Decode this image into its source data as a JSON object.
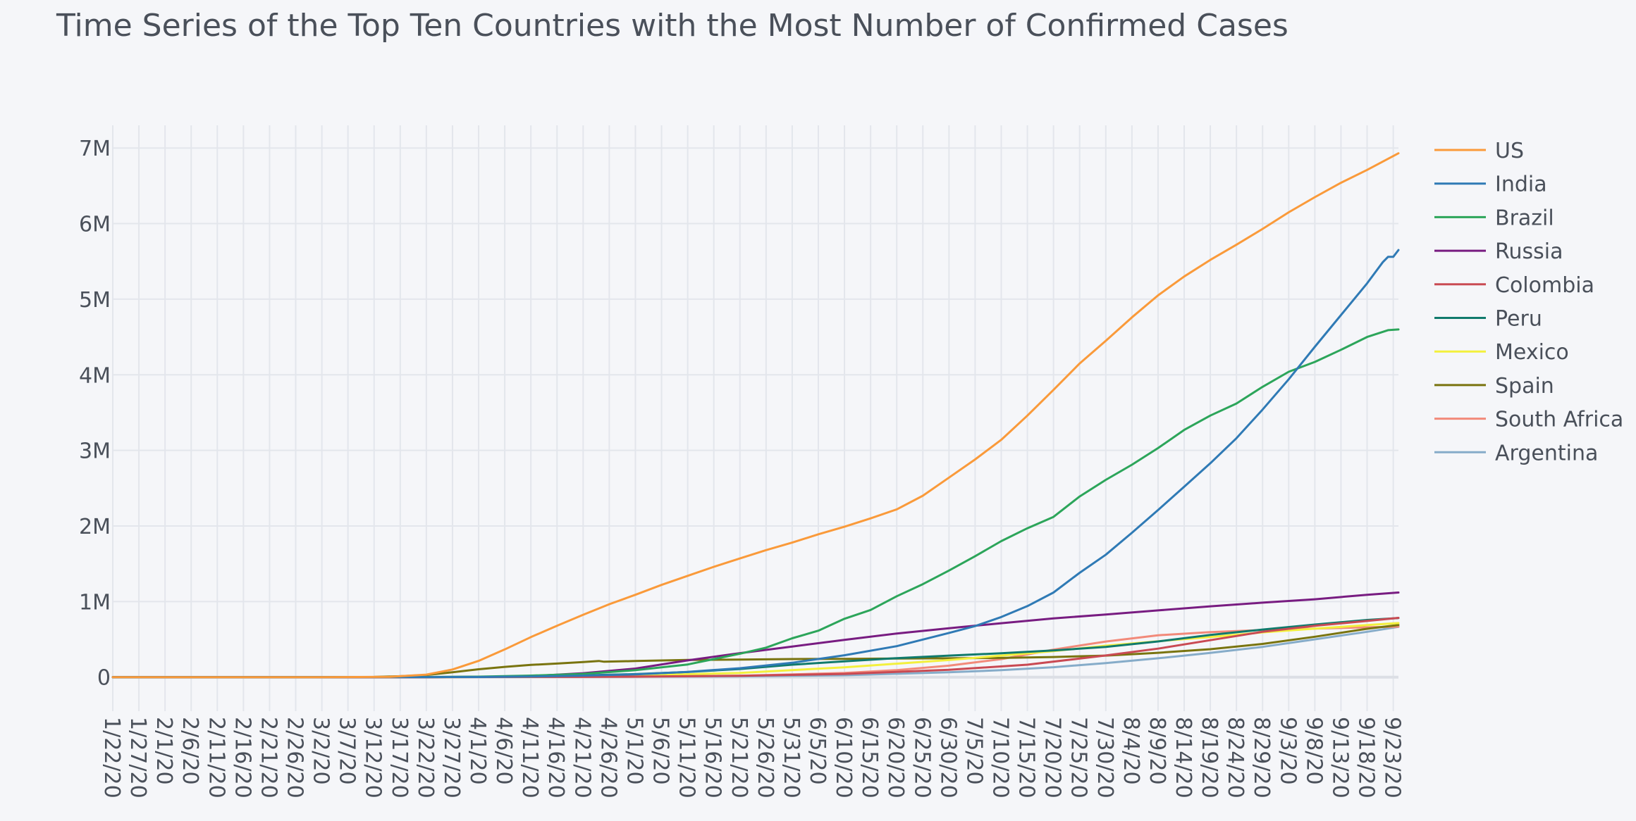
{
  "chart_data": {
    "type": "line",
    "title": "Time Series of the Top Ten Countries with the Most Number of Confirmed Cases",
    "xlabel": "",
    "ylabel": "",
    "x_start": "2020-01-22",
    "x_end": "2020-09-24",
    "x_tick_labels": [
      "1/22/20",
      "1/27/20",
      "2/1/20",
      "2/6/20",
      "2/11/20",
      "2/16/20",
      "2/21/20",
      "2/26/20",
      "3/2/20",
      "3/7/20",
      "3/12/20",
      "3/17/20",
      "3/22/20",
      "3/27/20",
      "4/1/20",
      "4/6/20",
      "4/11/20",
      "4/16/20",
      "4/21/20",
      "4/26/20",
      "5/1/20",
      "5/6/20",
      "5/11/20",
      "5/16/20",
      "5/21/20",
      "5/26/20",
      "5/31/20",
      "6/5/20",
      "6/10/20",
      "6/15/20",
      "6/20/20",
      "6/25/20",
      "6/30/20",
      "7/5/20",
      "7/10/20",
      "7/15/20",
      "7/20/20",
      "7/25/20",
      "7/30/20",
      "8/4/20",
      "8/9/20",
      "8/14/20",
      "8/19/20",
      "8/24/20",
      "8/29/20",
      "9/3/20",
      "9/8/20",
      "9/13/20",
      "9/18/20",
      "9/23/20"
    ],
    "y_ticks": [
      0,
      1000000,
      2000000,
      3000000,
      4000000,
      5000000,
      6000000,
      7000000
    ],
    "y_tick_labels": [
      "0",
      "1M",
      "2M",
      "3M",
      "4M",
      "5M",
      "6M",
      "7M"
    ],
    "ylim": [
      -450000,
      7300000
    ],
    "grid": true,
    "legend_position": "right",
    "series": [
      {
        "name": "US",
        "color": "#fa9a3a",
        "points": [
          [
            "1/22/20",
            0
          ],
          [
            "3/1/20",
            75
          ],
          [
            "3/15/20",
            3500
          ],
          [
            "3/22/20",
            33000
          ],
          [
            "3/27/20",
            101000
          ],
          [
            "4/1/20",
            215000
          ],
          [
            "4/6/20",
            367000
          ],
          [
            "4/11/20",
            530000
          ],
          [
            "4/16/20",
            680000
          ],
          [
            "4/21/20",
            825000
          ],
          [
            "4/26/20",
            965000
          ],
          [
            "5/1/20",
            1090000
          ],
          [
            "5/6/20",
            1220000
          ],
          [
            "5/11/20",
            1340000
          ],
          [
            "5/16/20",
            1460000
          ],
          [
            "5/21/20",
            1570000
          ],
          [
            "5/26/20",
            1680000
          ],
          [
            "5/31/20",
            1780000
          ],
          [
            "6/5/20",
            1890000
          ],
          [
            "6/10/20",
            1990000
          ],
          [
            "6/15/20",
            2100000
          ],
          [
            "6/20/20",
            2220000
          ],
          [
            "6/25/20",
            2400000
          ],
          [
            "6/30/20",
            2640000
          ],
          [
            "7/5/20",
            2880000
          ],
          [
            "7/10/20",
            3140000
          ],
          [
            "7/15/20",
            3460000
          ],
          [
            "7/20/20",
            3800000
          ],
          [
            "7/25/20",
            4150000
          ],
          [
            "7/30/20",
            4450000
          ],
          [
            "8/4/20",
            4760000
          ],
          [
            "8/9/20",
            5050000
          ],
          [
            "8/14/20",
            5300000
          ],
          [
            "8/19/20",
            5520000
          ],
          [
            "8/24/20",
            5720000
          ],
          [
            "8/29/20",
            5930000
          ],
          [
            "9/3/20",
            6150000
          ],
          [
            "9/8/20",
            6350000
          ],
          [
            "9/13/20",
            6540000
          ],
          [
            "9/18/20",
            6710000
          ],
          [
            "9/24/20",
            6930000
          ]
        ]
      },
      {
        "name": "India",
        "color": "#2f7ab5",
        "points": [
          [
            "1/22/20",
            0
          ],
          [
            "3/22/20",
            400
          ],
          [
            "4/1/20",
            2000
          ],
          [
            "4/11/20",
            8000
          ],
          [
            "4/21/20",
            20000
          ],
          [
            "5/1/20",
            37000
          ],
          [
            "5/11/20",
            70000
          ],
          [
            "5/21/20",
            118000
          ],
          [
            "5/31/20",
            190000
          ],
          [
            "6/10/20",
            290000
          ],
          [
            "6/20/20",
            410000
          ],
          [
            "6/30/20",
            585000
          ],
          [
            "7/5/20",
            675000
          ],
          [
            "7/10/20",
            795000
          ],
          [
            "7/15/20",
            940000
          ],
          [
            "7/20/20",
            1120000
          ],
          [
            "7/25/20",
            1380000
          ],
          [
            "7/30/20",
            1620000
          ],
          [
            "8/4/20",
            1910000
          ],
          [
            "8/9/20",
            2210000
          ],
          [
            "8/14/20",
            2520000
          ],
          [
            "8/19/20",
            2830000
          ],
          [
            "8/24/20",
            3160000
          ],
          [
            "8/29/20",
            3540000
          ],
          [
            "9/3/20",
            3940000
          ],
          [
            "9/8/20",
            4370000
          ],
          [
            "9/13/20",
            4790000
          ],
          [
            "9/18/20",
            5210000
          ],
          [
            "9/21/20",
            5490000
          ],
          [
            "9/22/20",
            5560000
          ],
          [
            "9/23/20",
            5560000
          ],
          [
            "9/24/20",
            5650000
          ]
        ]
      },
      {
        "name": "Brazil",
        "color": "#2ca55a",
        "points": [
          [
            "1/22/20",
            0
          ],
          [
            "3/22/20",
            1500
          ],
          [
            "4/1/20",
            6800
          ],
          [
            "4/11/20",
            20000
          ],
          [
            "4/21/20",
            43000
          ],
          [
            "5/1/20",
            92000
          ],
          [
            "5/11/20",
            168000
          ],
          [
            "5/21/20",
            310000
          ],
          [
            "5/26/20",
            390000
          ],
          [
            "5/31/20",
            514000
          ],
          [
            "6/5/20",
            615000
          ],
          [
            "6/10/20",
            772000
          ],
          [
            "6/15/20",
            889000
          ],
          [
            "6/20/20",
            1070000
          ],
          [
            "6/25/20",
            1230000
          ],
          [
            "6/30/20",
            1410000
          ],
          [
            "7/5/20",
            1600000
          ],
          [
            "7/10/20",
            1800000
          ],
          [
            "7/15/20",
            1970000
          ],
          [
            "7/20/20",
            2120000
          ],
          [
            "7/25/20",
            2390000
          ],
          [
            "7/30/20",
            2610000
          ],
          [
            "8/4/20",
            2810000
          ],
          [
            "8/9/20",
            3030000
          ],
          [
            "8/14/20",
            3270000
          ],
          [
            "8/19/20",
            3460000
          ],
          [
            "8/24/20",
            3620000
          ],
          [
            "8/29/20",
            3840000
          ],
          [
            "9/3/20",
            4040000
          ],
          [
            "9/8/20",
            4170000
          ],
          [
            "9/13/20",
            4330000
          ],
          [
            "9/18/20",
            4500000
          ],
          [
            "9/22/20",
            4590000
          ],
          [
            "9/24/20",
            4600000
          ]
        ]
      },
      {
        "name": "Russia",
        "color": "#781c81",
        "points": [
          [
            "1/22/20",
            0
          ],
          [
            "3/22/20",
            400
          ],
          [
            "4/1/20",
            2800
          ],
          [
            "4/11/20",
            13600
          ],
          [
            "4/21/20",
            52000
          ],
          [
            "5/1/20",
            114000
          ],
          [
            "5/11/20",
            222000
          ],
          [
            "5/21/20",
            318000
          ],
          [
            "5/31/20",
            405000
          ],
          [
            "6/10/20",
            494000
          ],
          [
            "6/20/20",
            577000
          ],
          [
            "6/30/20",
            647000
          ],
          [
            "7/10/20",
            713000
          ],
          [
            "7/20/20",
            778000
          ],
          [
            "7/30/20",
            828000
          ],
          [
            "8/9/20",
            883000
          ],
          [
            "8/19/20",
            937000
          ],
          [
            "8/29/20",
            985000
          ],
          [
            "9/8/20",
            1030000
          ],
          [
            "9/18/20",
            1090000
          ],
          [
            "9/24/20",
            1120000
          ]
        ]
      },
      {
        "name": "Colombia",
        "color": "#c94a53",
        "points": [
          [
            "1/22/20",
            0
          ],
          [
            "3/22/20",
            200
          ],
          [
            "4/11/20",
            2500
          ],
          [
            "5/1/20",
            7000
          ],
          [
            "5/21/20",
            18000
          ],
          [
            "6/10/20",
            43000
          ],
          [
            "6/30/20",
            97000
          ],
          [
            "7/15/20",
            165000
          ],
          [
            "7/30/20",
            287000
          ],
          [
            "8/9/20",
            377000
          ],
          [
            "8/19/20",
            489000
          ],
          [
            "8/29/20",
            600000
          ],
          [
            "9/8/20",
            680000
          ],
          [
            "9/18/20",
            743000
          ],
          [
            "9/24/20",
            784000
          ]
        ]
      },
      {
        "name": "Peru",
        "color": "#107a6c",
        "points": [
          [
            "1/22/20",
            0
          ],
          [
            "3/22/20",
            400
          ],
          [
            "4/11/20",
            6800
          ],
          [
            "5/1/20",
            40000
          ],
          [
            "5/11/20",
            68000
          ],
          [
            "5/21/20",
            108000
          ],
          [
            "5/31/20",
            165000
          ],
          [
            "6/10/20",
            209000
          ],
          [
            "6/20/20",
            251000
          ],
          [
            "6/30/20",
            285000
          ],
          [
            "7/10/20",
            316000
          ],
          [
            "7/20/20",
            353000
          ],
          [
            "7/30/20",
            400000
          ],
          [
            "8/9/20",
            472000
          ],
          [
            "8/19/20",
            558000
          ],
          [
            "8/29/20",
            630000
          ],
          [
            "9/8/20",
            696000
          ],
          [
            "9/18/20",
            756000
          ],
          [
            "9/24/20",
            782000
          ]
        ]
      },
      {
        "name": "Mexico",
        "color": "#f3f03d",
        "points": [
          [
            "1/22/20",
            0
          ],
          [
            "3/22/20",
            300
          ],
          [
            "4/11/20",
            4000
          ],
          [
            "5/1/20",
            20000
          ],
          [
            "5/21/20",
            56000
          ],
          [
            "6/10/20",
            130000
          ],
          [
            "6/30/20",
            226000
          ],
          [
            "7/20/20",
            345000
          ],
          [
            "7/30/20",
            416000
          ],
          [
            "8/9/20",
            475000
          ],
          [
            "8/19/20",
            530000
          ],
          [
            "8/29/20",
            592000
          ],
          [
            "9/8/20",
            642000
          ],
          [
            "9/18/20",
            688000
          ],
          [
            "9/24/20",
            715000
          ]
        ]
      },
      {
        "name": "Spain",
        "color": "#79740f",
        "points": [
          [
            "1/22/20",
            0
          ],
          [
            "3/1/20",
            84
          ],
          [
            "3/12/20",
            3000
          ],
          [
            "3/17/20",
            11800
          ],
          [
            "3/22/20",
            28600
          ],
          [
            "3/27/20",
            65000
          ],
          [
            "4/1/20",
            104000
          ],
          [
            "4/6/20",
            136000
          ],
          [
            "4/11/20",
            162000
          ],
          [
            "4/16/20",
            180000
          ],
          [
            "4/21/20",
            200000
          ],
          [
            "4/24/20",
            214000
          ],
          [
            "4/25/20",
            204000
          ],
          [
            "5/1/20",
            213000
          ],
          [
            "5/11/20",
            227000
          ],
          [
            "5/21/20",
            233000
          ],
          [
            "5/31/20",
            239000
          ],
          [
            "6/10/20",
            242000
          ],
          [
            "6/20/20",
            246000
          ],
          [
            "6/30/20",
            250000
          ],
          [
            "7/10/20",
            254000
          ],
          [
            "7/20/20",
            266000
          ],
          [
            "7/30/20",
            285000
          ],
          [
            "8/9/20",
            322000
          ],
          [
            "8/19/20",
            370000
          ],
          [
            "8/29/20",
            440000
          ],
          [
            "9/8/20",
            535000
          ],
          [
            "9/18/20",
            640000
          ],
          [
            "9/24/20",
            690000
          ]
        ]
      },
      {
        "name": "South Africa",
        "color": "#f28a7a",
        "points": [
          [
            "1/22/20",
            0
          ],
          [
            "3/22/20",
            200
          ],
          [
            "4/11/20",
            2000
          ],
          [
            "5/1/20",
            5600
          ],
          [
            "5/21/20",
            19000
          ],
          [
            "6/10/20",
            55000
          ],
          [
            "6/20/20",
            93000
          ],
          [
            "6/30/20",
            152000
          ],
          [
            "7/10/20",
            238000
          ],
          [
            "7/20/20",
            364000
          ],
          [
            "7/30/20",
            471000
          ],
          [
            "8/9/20",
            554000
          ],
          [
            "8/19/20",
            596000
          ],
          [
            "8/29/20",
            624000
          ],
          [
            "9/8/20",
            642000
          ],
          [
            "9/18/20",
            659000
          ],
          [
            "9/24/20",
            668000
          ]
        ]
      },
      {
        "name": "Argentina",
        "color": "#86acc9",
        "points": [
          [
            "1/22/20",
            0
          ],
          [
            "3/22/20",
            200
          ],
          [
            "4/11/20",
            2000
          ],
          [
            "5/1/20",
            4500
          ],
          [
            "5/21/20",
            10000
          ],
          [
            "6/10/20",
            25000
          ],
          [
            "6/30/20",
            64000
          ],
          [
            "7/10/20",
            92000
          ],
          [
            "7/20/20",
            131000
          ],
          [
            "7/30/20",
            186000
          ],
          [
            "8/9/20",
            250000
          ],
          [
            "8/19/20",
            320000
          ],
          [
            "8/29/20",
            400000
          ],
          [
            "9/8/20",
            500000
          ],
          [
            "9/18/20",
            600000
          ],
          [
            "9/24/20",
            665000
          ]
        ]
      }
    ]
  }
}
